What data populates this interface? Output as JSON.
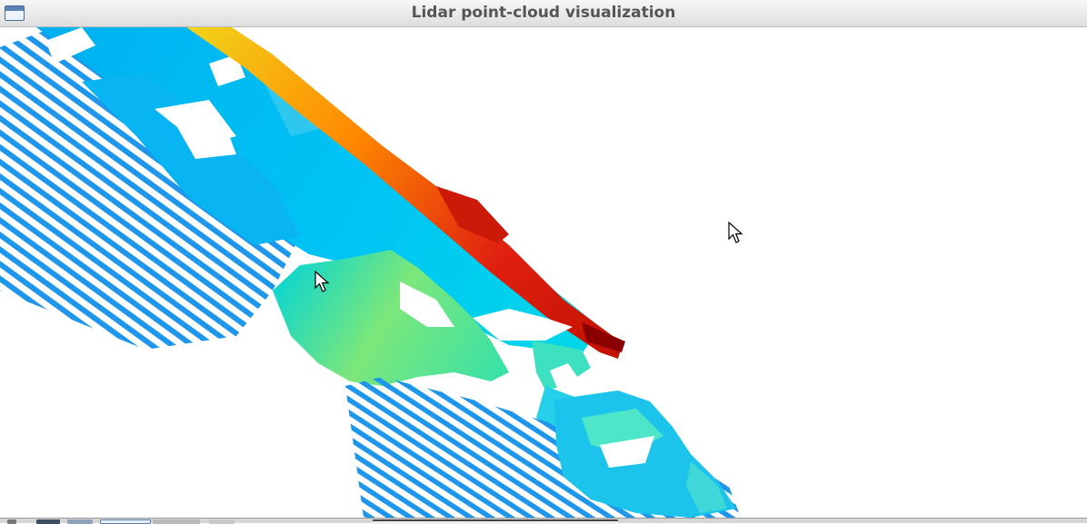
{
  "window": {
    "title": "Lidar point-cloud visualization",
    "icon": "window-icon"
  },
  "viewport": {
    "content": "lidar-point-cloud",
    "colormap": [
      "#1e88e5",
      "#00b8ff",
      "#00e5d0",
      "#9ee85a",
      "#f2d21a",
      "#ff8a00",
      "#e02010",
      "#8a0000"
    ]
  },
  "cursors": [
    "arrow-cursor-icon",
    "arrow-cursor-icon"
  ],
  "taskbar": {
    "items": [
      "app-menu-icon",
      "terminal-icon",
      "desktop-icon",
      "active-window-tab",
      "window-tab",
      "window-tab",
      "window-list-tab"
    ]
  }
}
